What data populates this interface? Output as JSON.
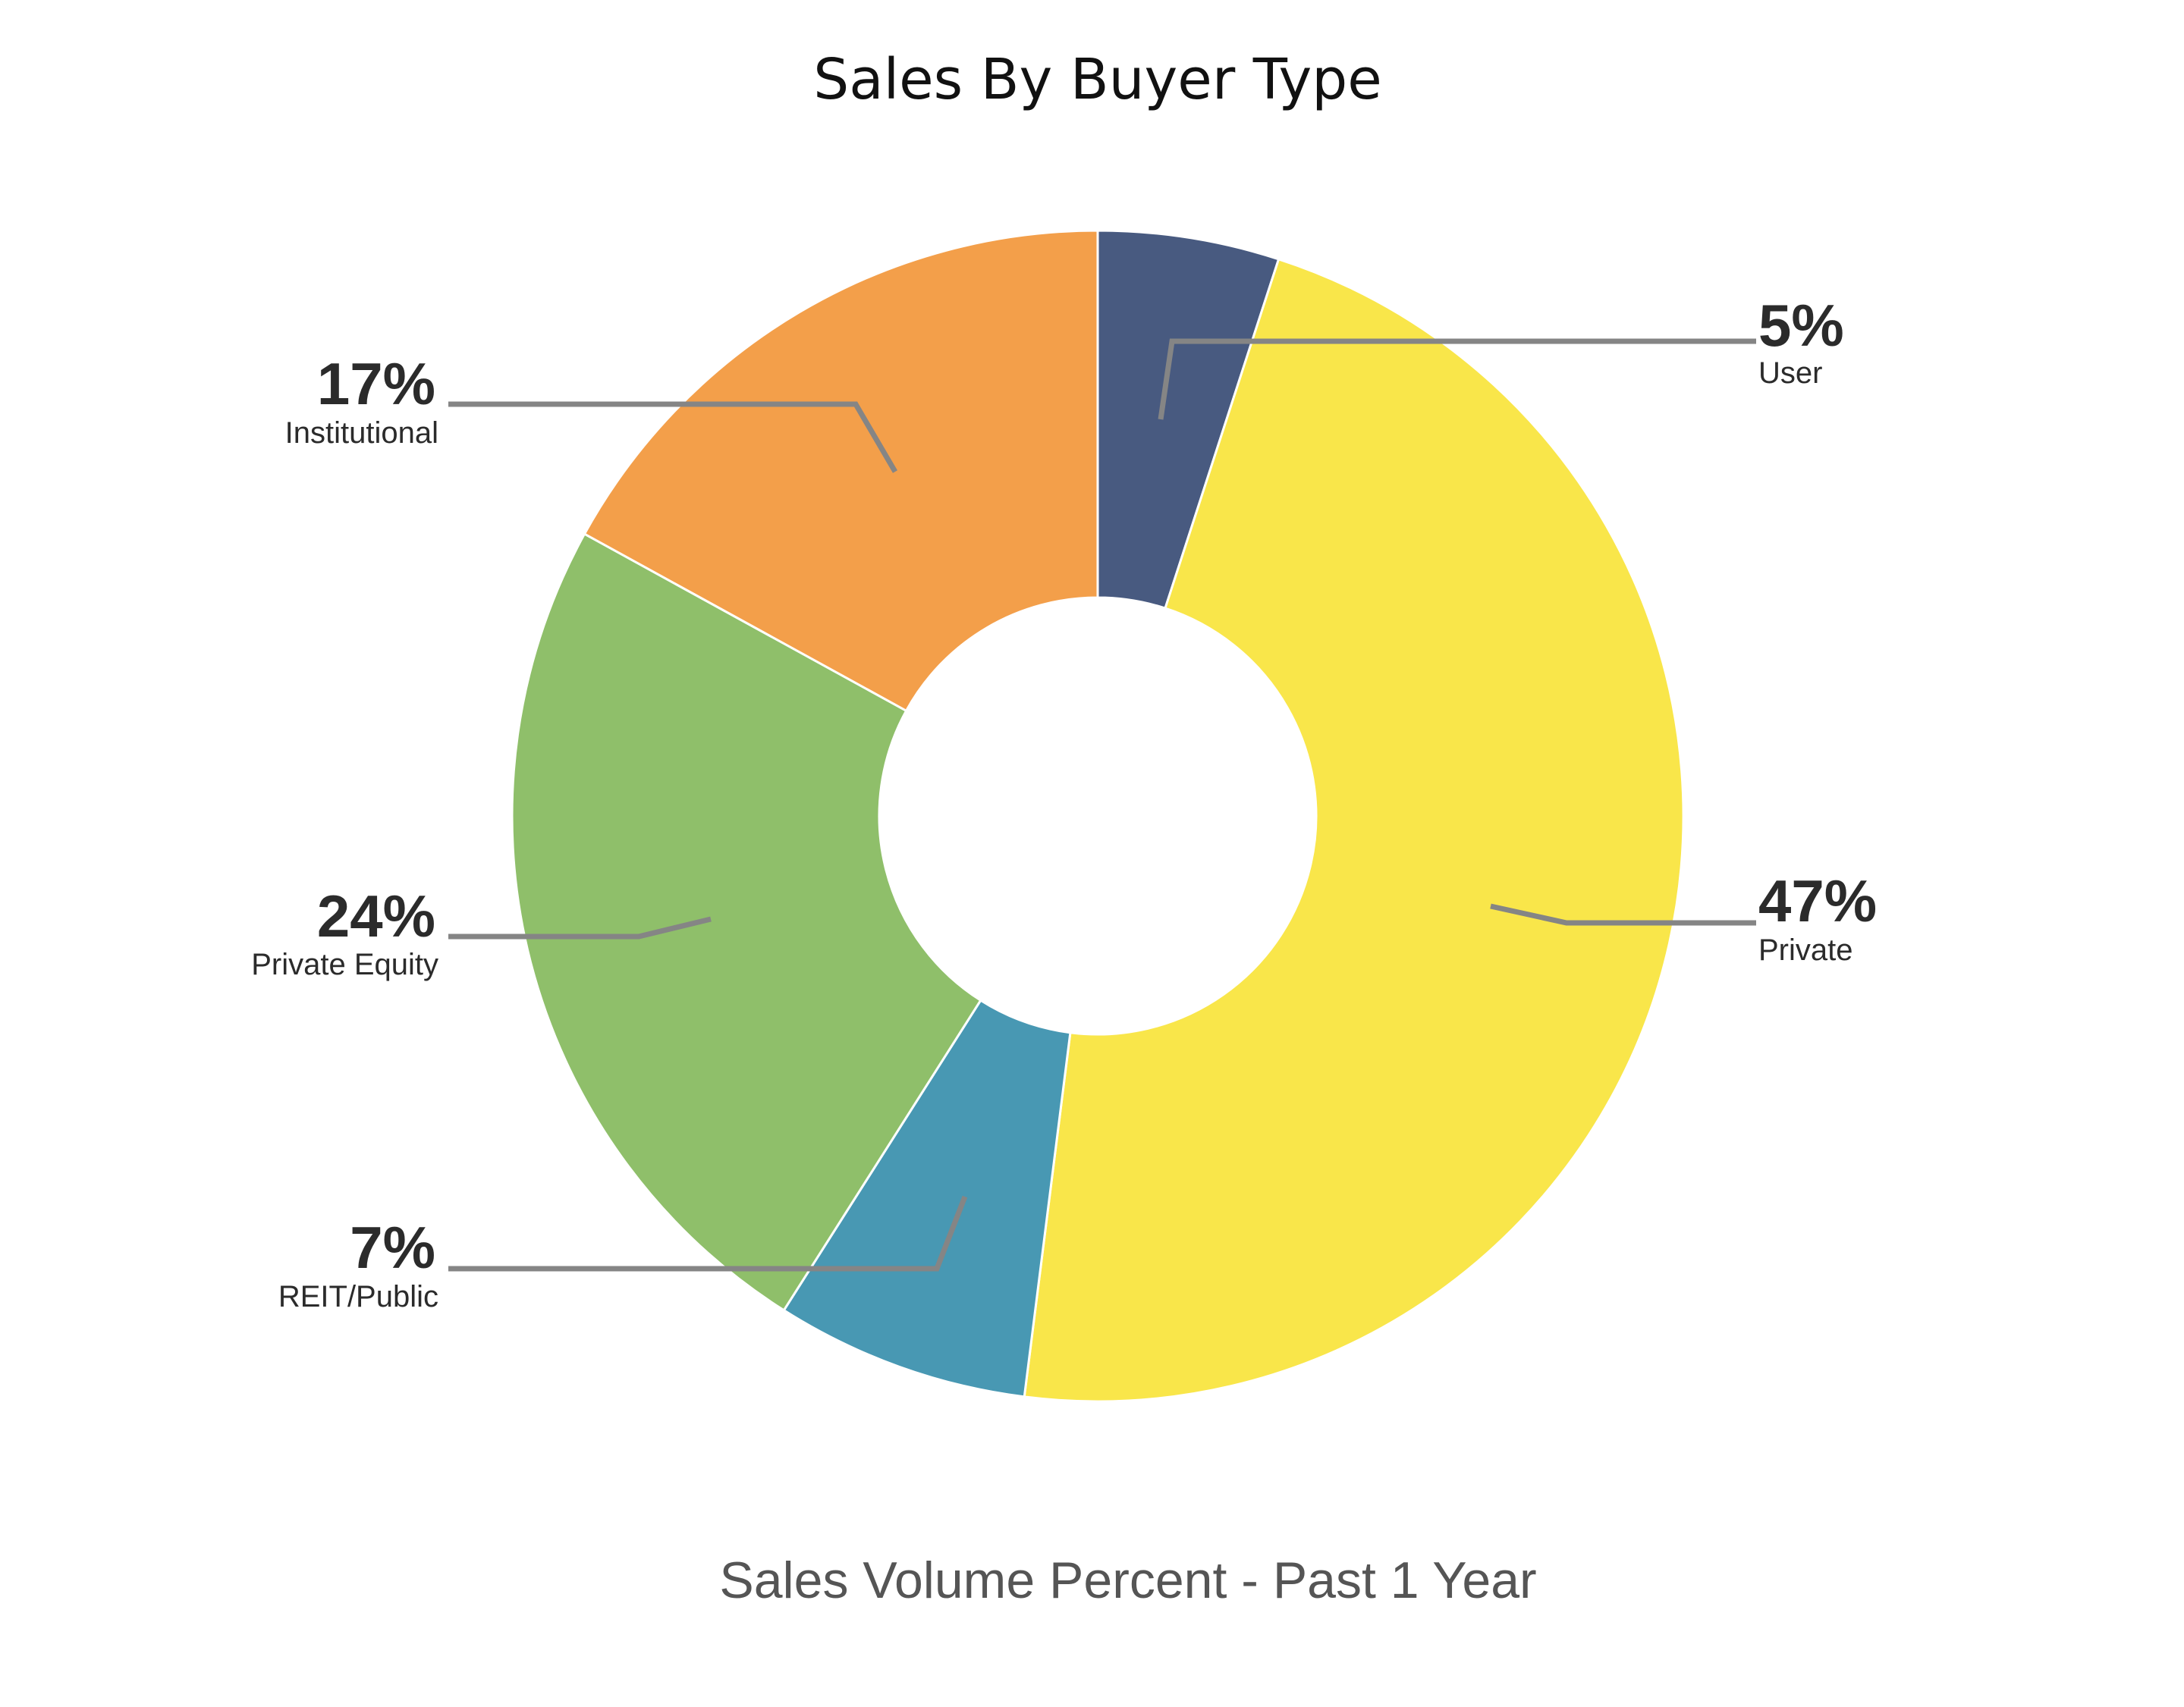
{
  "chart_data": {
    "type": "pie",
    "donut": true,
    "title": "Sales By Buyer Type",
    "subtitle": "Sales Volume Percent - Past 1 Year",
    "categories": [
      "User",
      "Private",
      "REIT/Public",
      "Private Equity",
      "Institutional"
    ],
    "values": [
      5,
      47,
      7,
      24,
      17
    ],
    "value_labels": [
      "5%",
      "47%",
      "7%",
      "24%",
      "17%"
    ],
    "colors": [
      "#485a80",
      "#f9e64a",
      "#4898b3",
      "#8fbf6a",
      "#f39f4a"
    ],
    "legend": "none",
    "start_angle": "12 o'clock",
    "direction": "clockwise"
  }
}
